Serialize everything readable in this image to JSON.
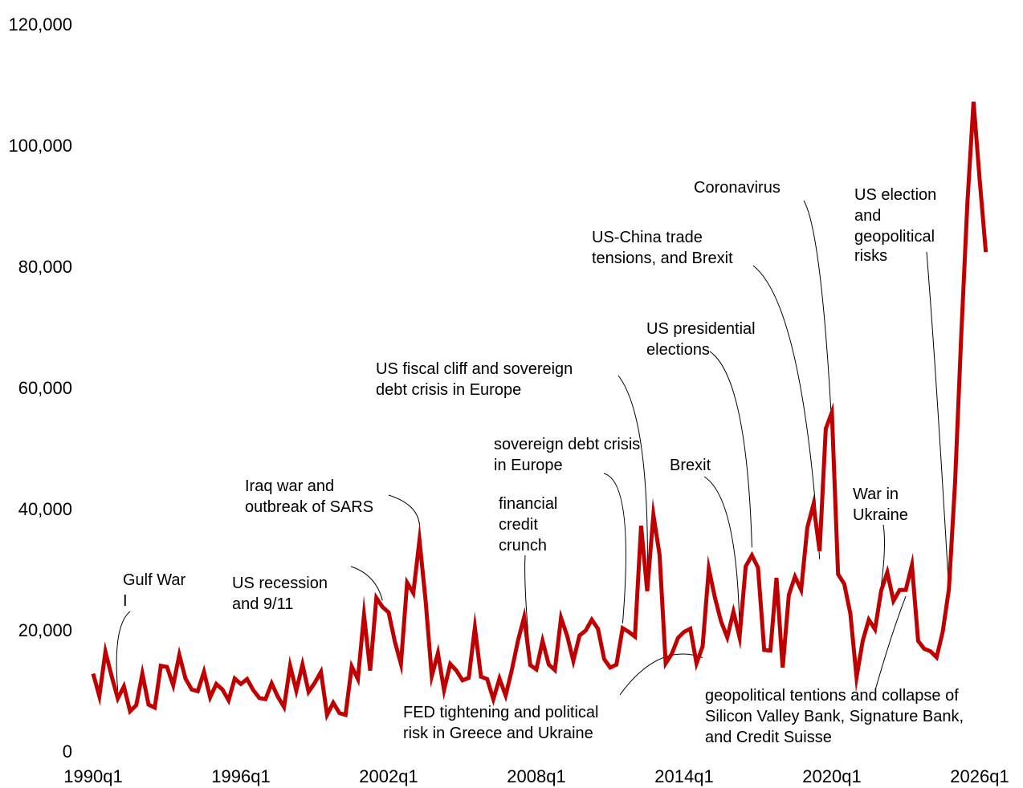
{
  "chart_data": {
    "type": "line",
    "title": "",
    "xlabel": "",
    "ylabel": "",
    "ylim": [
      0,
      120000
    ],
    "grid": false,
    "legend": "none",
    "y_ticks": [
      "0",
      "20,000",
      "40,000",
      "60,000",
      "80,000",
      "100,000",
      "120,000"
    ],
    "x_ticks": [
      "1990q1",
      "1996q1",
      "2002q1",
      "2008q1",
      "2014q1",
      "2020q1",
      "2026q1"
    ],
    "series_color": "#c00000",
    "series": [
      {
        "name": "",
        "x_start": "1990q1",
        "step": "quarter",
        "values": [
          12500,
          8800,
          16100,
          12100,
          8400,
          10400,
          6300,
          7300,
          12500,
          7400,
          6900,
          13800,
          13600,
          10600,
          15600,
          11700,
          9900,
          9600,
          12800,
          8600,
          10800,
          9900,
          8100,
          11700,
          10800,
          11600,
          9800,
          8500,
          8300,
          10900,
          8700,
          7000,
          13800,
          9700,
          14000,
          9500,
          11000,
          12800,
          5700,
          7700,
          6000,
          5700,
          13700,
          11600,
          22200,
          13000,
          25000,
          23500,
          22600,
          17800,
          14100,
          27500,
          25800,
          34500,
          24600,
          12100,
          15900,
          9800,
          14100,
          13000,
          11400,
          11800,
          20100,
          12000,
          11600,
          8300,
          11700,
          8900,
          13100,
          17900,
          21800,
          13900,
          13200,
          17900,
          14000,
          13100,
          21700,
          18700,
          14600,
          18800,
          19600,
          21400,
          19900,
          14900,
          13500,
          14000,
          20000,
          19400,
          18600,
          36900,
          26100,
          38700,
          32100,
          14200,
          15800,
          18400,
          19400,
          19900,
          14200,
          17000,
          29800,
          25000,
          21100,
          18500,
          22700,
          18500,
          30200,
          32000,
          30000,
          16400,
          16300,
          28300,
          13500,
          25500,
          28500,
          26300,
          36600,
          40400,
          32700,
          52900,
          55600,
          28900,
          27300,
          22400,
          11900,
          17900,
          21400,
          19800,
          26200,
          29200,
          24500,
          26300,
          26300,
          30400,
          17900,
          16600,
          16200,
          15200,
          19400,
          26400,
          44000,
          68000,
          90000,
          106800,
          94000,
          82000
        ]
      }
    ],
    "annotations": [
      {
        "id": "gulf-war",
        "lines": [
          "Gulf War",
          "I"
        ],
        "date": "1991q1"
      },
      {
        "id": "us-recession",
        "lines": [
          "US recession",
          "and 9/11"
        ],
        "date": "2001q4"
      },
      {
        "id": "iraq-war",
        "lines": [
          "Iraq war and",
          "outbreak of SARS"
        ],
        "date": "2003q2"
      },
      {
        "id": "fed-tightening",
        "lines": [
          "FED tightening and political",
          "risk in Greece and Ukraine"
        ],
        "date": "2014q4"
      },
      {
        "id": "financial-credit-crunch",
        "lines": [
          "financial",
          "credit",
          "crunch"
        ],
        "date": "2007q4"
      },
      {
        "id": "sovereign-debt-crisis",
        "lines": [
          "sovereign debt crisis",
          "in Europe"
        ],
        "date": "2011q3"
      },
      {
        "id": "us-fiscal-cliff",
        "lines": [
          "US fiscal cliff and sovereign",
          "debt crisis in Europe"
        ],
        "date": "2012q3"
      },
      {
        "id": "brexit",
        "lines": [
          "Brexit"
        ],
        "date": "2016q2"
      },
      {
        "id": "us-presidential-elections",
        "lines": [
          "US presidential",
          "elections"
        ],
        "date": "2016q4"
      },
      {
        "id": "us-china-trade",
        "lines": [
          "US-China trade",
          "tensions, and Brexit"
        ],
        "date": "2019q3"
      },
      {
        "id": "coronavirus",
        "lines": [
          "Coronavirus"
        ],
        "date": "2020q2"
      },
      {
        "id": "war-in-ukraine",
        "lines": [
          "War in",
          "Ukraine"
        ],
        "date": "2022q1"
      },
      {
        "id": "geopolitical-tentions",
        "lines": [
          "geopolitical tentions and collapse of",
          "Silicon Valley Bank, Signature Bank,",
          "and Credit Suisse"
        ],
        "date": "2023q1"
      },
      {
        "id": "us-election",
        "lines": [
          "US election",
          "and",
          "geopolitical",
          "risks"
        ],
        "date": "2024q4"
      }
    ]
  }
}
